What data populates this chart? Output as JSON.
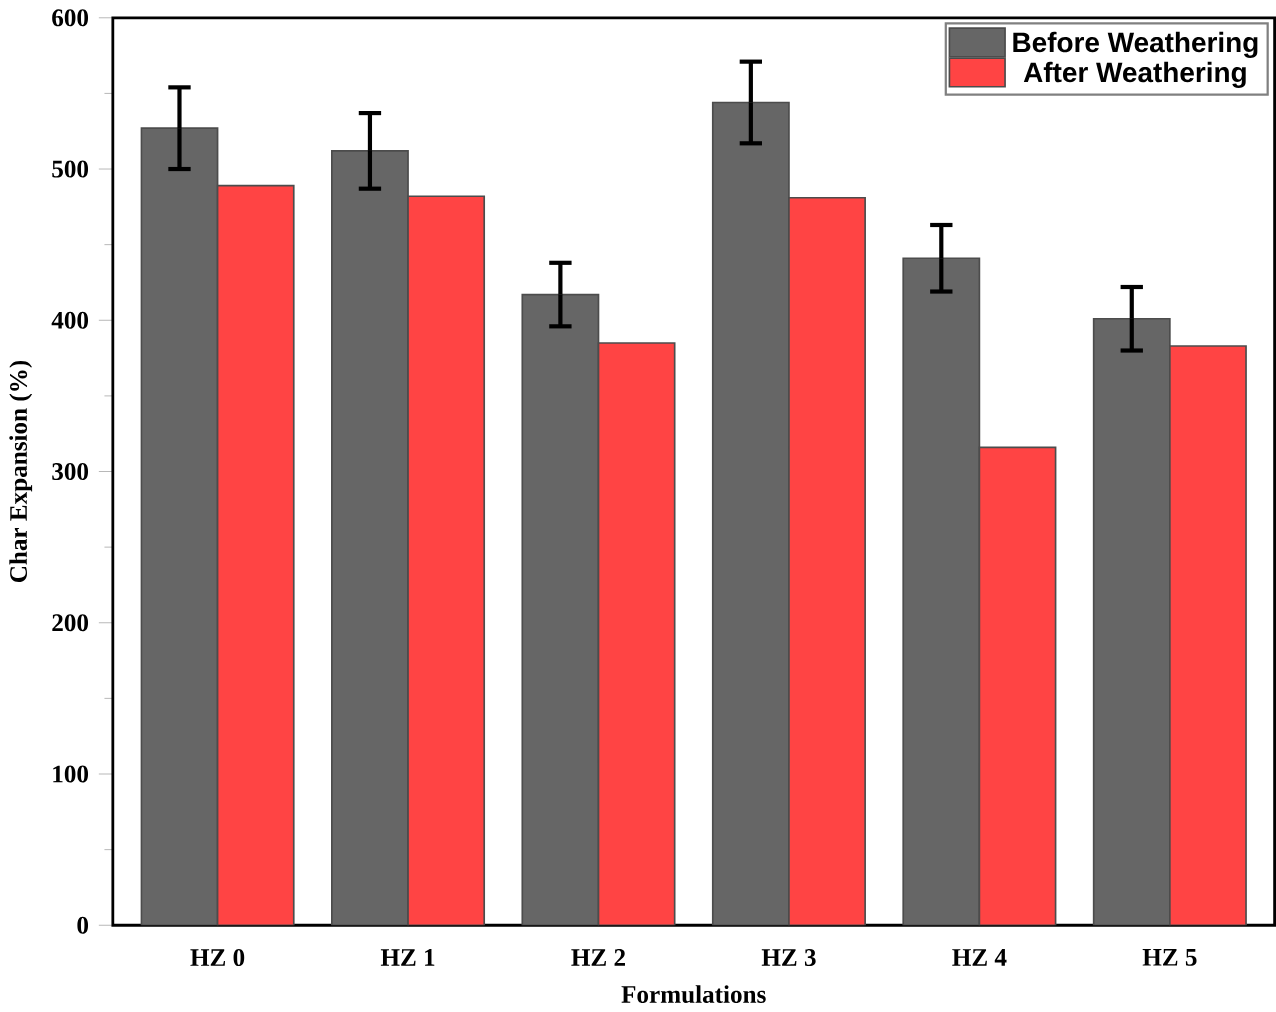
{
  "chart_data": {
    "type": "bar",
    "xlabel": "Formulations",
    "ylabel": "Char Expansion (%)",
    "categories": [
      "HZ 0",
      "HZ 1",
      "HZ 2",
      "HZ 3",
      "HZ 4",
      "HZ 5"
    ],
    "series": [
      {
        "name": "Before Weathering",
        "color": "#666666",
        "values": [
          527,
          512,
          417,
          544,
          441,
          401
        ],
        "errors": [
          27,
          25,
          21,
          27,
          22,
          21
        ]
      },
      {
        "name": "After Weathering",
        "color": "#ff4444",
        "values": [
          489,
          482,
          385,
          481,
          316,
          383
        ]
      }
    ],
    "ylim": [
      0,
      600
    ],
    "yticks": [
      0,
      100,
      200,
      300,
      400,
      500,
      600
    ],
    "legend": "top right",
    "grid": false
  }
}
